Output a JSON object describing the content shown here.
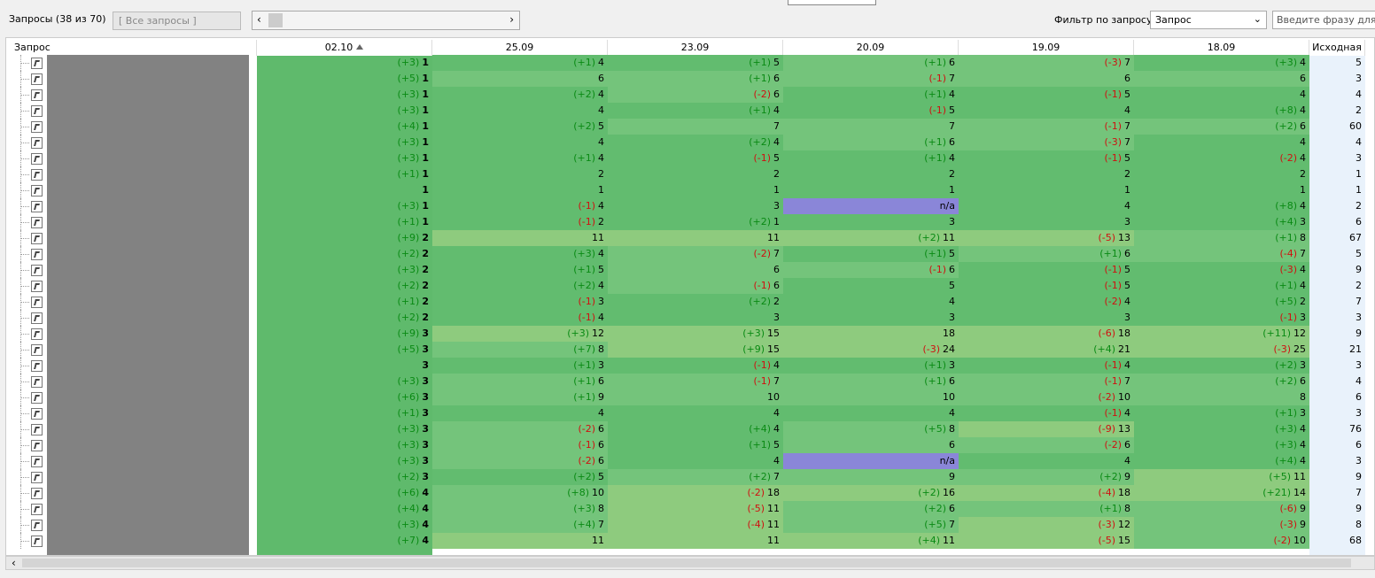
{
  "toolbar": {
    "title": "Запросы (38 из 70)",
    "query_set": "[ Все запросы ]",
    "filter_label": "Фильтр по запросу:",
    "filter_field": "Запрос",
    "search_placeholder": "Введите фразу для по"
  },
  "table": {
    "query_header": "Запрос",
    "columns": [
      "02.10",
      "25.09",
      "23.09",
      "20.09",
      "19.09",
      "18.09"
    ],
    "source_header": "Исходная",
    "rows": [
      {
        "cells": [
          [
            "(+3)",
            1
          ],
          [
            "(+1)",
            4
          ],
          [
            "(+1)",
            5
          ],
          [
            "(+1)",
            6
          ],
          [
            "(-3)",
            7
          ],
          [
            "(+3)",
            4
          ]
        ],
        "source": 5
      },
      {
        "cells": [
          [
            "(+5)",
            1
          ],
          [
            6
          ],
          [
            "(+1)",
            6
          ],
          [
            "(-1)",
            7
          ],
          [
            6
          ],
          [
            6
          ]
        ],
        "source": 3
      },
      {
        "cells": [
          [
            "(+3)",
            1
          ],
          [
            "(+2)",
            4
          ],
          [
            "(-2)",
            6
          ],
          [
            "(+1)",
            4
          ],
          [
            "(-1)",
            5
          ],
          [
            4
          ]
        ],
        "source": 4
      },
      {
        "cells": [
          [
            "(+3)",
            1
          ],
          [
            4
          ],
          [
            "(+1)",
            4
          ],
          [
            "(-1)",
            5
          ],
          [
            4
          ],
          [
            "(+8)",
            4
          ]
        ],
        "source": 2
      },
      {
        "cells": [
          [
            "(+4)",
            1
          ],
          [
            "(+2)",
            5
          ],
          [
            7
          ],
          [
            7
          ],
          [
            "(-1)",
            7
          ],
          [
            "(+2)",
            6
          ]
        ],
        "source": 60
      },
      {
        "cells": [
          [
            "(+3)",
            1
          ],
          [
            4
          ],
          [
            "(+2)",
            4
          ],
          [
            "(+1)",
            6
          ],
          [
            "(-3)",
            7
          ],
          [
            4
          ]
        ],
        "source": 4
      },
      {
        "cells": [
          [
            "(+3)",
            1
          ],
          [
            "(+1)",
            4
          ],
          [
            "(-1)",
            5
          ],
          [
            "(+1)",
            4
          ],
          [
            "(-1)",
            5
          ],
          [
            "(-2)",
            4
          ]
        ],
        "source": 3
      },
      {
        "cells": [
          [
            "(+1)",
            1
          ],
          [
            2
          ],
          [
            2
          ],
          [
            2
          ],
          [
            2
          ],
          [
            2
          ]
        ],
        "source": 1
      },
      {
        "cells": [
          [
            1
          ],
          [
            1
          ],
          [
            1
          ],
          [
            1
          ],
          [
            1
          ],
          [
            1
          ]
        ],
        "source": 1
      },
      {
        "cells": [
          [
            "(+3)",
            1
          ],
          [
            "(-1)",
            4
          ],
          [
            3
          ],
          [
            "n/a"
          ],
          [
            4
          ],
          [
            "(+8)",
            4
          ]
        ],
        "source": 2
      },
      {
        "cells": [
          [
            "(+1)",
            1
          ],
          [
            "(-1)",
            2
          ],
          [
            "(+2)",
            1
          ],
          [
            3
          ],
          [
            3
          ],
          [
            "(+4)",
            3
          ]
        ],
        "source": 6
      },
      {
        "cells": [
          [
            "(+9)",
            2
          ],
          [
            11
          ],
          [
            11
          ],
          [
            "(+2)",
            11
          ],
          [
            "(-5)",
            13
          ],
          [
            "(+1)",
            8
          ]
        ],
        "source": 67
      },
      {
        "cells": [
          [
            "(+2)",
            2
          ],
          [
            "(+3)",
            4
          ],
          [
            "(-2)",
            7
          ],
          [
            "(+1)",
            5
          ],
          [
            "(+1)",
            6
          ],
          [
            "(-4)",
            7
          ]
        ],
        "source": 5
      },
      {
        "cells": [
          [
            "(+3)",
            2
          ],
          [
            "(+1)",
            5
          ],
          [
            6
          ],
          [
            "(-1)",
            6
          ],
          [
            "(-1)",
            5
          ],
          [
            "(-3)",
            4
          ]
        ],
        "source": 9
      },
      {
        "cells": [
          [
            "(+2)",
            2
          ],
          [
            "(+2)",
            4
          ],
          [
            "(-1)",
            6
          ],
          [
            5
          ],
          [
            "(-1)",
            5
          ],
          [
            "(+1)",
            4
          ]
        ],
        "source": 2
      },
      {
        "cells": [
          [
            "(+1)",
            2
          ],
          [
            "(-1)",
            3
          ],
          [
            "(+2)",
            2
          ],
          [
            4
          ],
          [
            "(-2)",
            4
          ],
          [
            "(+5)",
            2
          ]
        ],
        "source": 7
      },
      {
        "cells": [
          [
            "(+2)",
            2
          ],
          [
            "(-1)",
            4
          ],
          [
            3
          ],
          [
            3
          ],
          [
            3
          ],
          [
            "(-1)",
            3
          ]
        ],
        "source": 3
      },
      {
        "cells": [
          [
            "(+9)",
            3
          ],
          [
            "(+3)",
            12
          ],
          [
            "(+3)",
            15
          ],
          [
            18
          ],
          [
            "(-6)",
            18
          ],
          [
            "(+11)",
            12
          ]
        ],
        "source": 9
      },
      {
        "cells": [
          [
            "(+5)",
            3
          ],
          [
            "(+7)",
            8
          ],
          [
            "(+9)",
            15
          ],
          [
            "(-3)",
            24
          ],
          [
            "(+4)",
            21
          ],
          [
            "(-3)",
            25
          ]
        ],
        "source": 21
      },
      {
        "cells": [
          [
            3
          ],
          [
            "(+1)",
            3
          ],
          [
            "(-1)",
            4
          ],
          [
            "(+1)",
            3
          ],
          [
            "(-1)",
            4
          ],
          [
            "(+2)",
            3
          ]
        ],
        "source": 3
      },
      {
        "cells": [
          [
            "(+3)",
            3
          ],
          [
            "(+1)",
            6
          ],
          [
            "(-1)",
            7
          ],
          [
            "(+1)",
            6
          ],
          [
            "(-1)",
            7
          ],
          [
            "(+2)",
            6
          ]
        ],
        "source": 4
      },
      {
        "cells": [
          [
            "(+6)",
            3
          ],
          [
            "(+1)",
            9
          ],
          [
            10
          ],
          [
            10
          ],
          [
            "(-2)",
            10
          ],
          [
            8
          ]
        ],
        "source": 6
      },
      {
        "cells": [
          [
            "(+1)",
            3
          ],
          [
            4
          ],
          [
            4
          ],
          [
            4
          ],
          [
            "(-1)",
            4
          ],
          [
            "(+1)",
            3
          ]
        ],
        "source": 3
      },
      {
        "cells": [
          [
            "(+3)",
            3
          ],
          [
            "(-2)",
            6
          ],
          [
            "(+4)",
            4
          ],
          [
            "(+5)",
            8
          ],
          [
            "(-9)",
            13
          ],
          [
            "(+3)",
            4
          ]
        ],
        "source": 76
      },
      {
        "cells": [
          [
            "(+3)",
            3
          ],
          [
            "(-1)",
            6
          ],
          [
            "(+1)",
            5
          ],
          [
            6
          ],
          [
            "(-2)",
            6
          ],
          [
            "(+3)",
            4
          ]
        ],
        "source": 6
      },
      {
        "cells": [
          [
            "(+3)",
            3
          ],
          [
            "(-2)",
            6
          ],
          [
            4
          ],
          [
            "n/a"
          ],
          [
            4
          ],
          [
            "(+4)",
            4
          ]
        ],
        "source": 3
      },
      {
        "cells": [
          [
            "(+2)",
            3
          ],
          [
            "(+2)",
            5
          ],
          [
            "(+2)",
            7
          ],
          [
            9
          ],
          [
            "(+2)",
            9
          ],
          [
            "(+5)",
            11
          ]
        ],
        "source": 9
      },
      {
        "cells": [
          [
            "(+6)",
            4
          ],
          [
            "(+8)",
            10
          ],
          [
            "(-2)",
            18
          ],
          [
            "(+2)",
            16
          ],
          [
            "(-4)",
            18
          ],
          [
            "(+21)",
            14
          ]
        ],
        "source": 7
      },
      {
        "cells": [
          [
            "(+4)",
            4
          ],
          [
            "(+3)",
            8
          ],
          [
            "(-5)",
            11
          ],
          [
            "(+2)",
            6
          ],
          [
            "(+1)",
            8
          ],
          [
            "(-6)",
            9
          ]
        ],
        "source": 9
      },
      {
        "cells": [
          [
            "(+3)",
            4
          ],
          [
            "(+4)",
            7
          ],
          [
            "(-4)",
            11
          ],
          [
            "(+5)",
            7
          ],
          [
            "(-3)",
            12
          ],
          [
            "(-3)",
            9
          ]
        ],
        "source": 8
      },
      {
        "cells": [
          [
            "(+7)",
            4
          ],
          [
            11
          ],
          [
            11
          ],
          [
            "(+4)",
            11
          ],
          [
            "(-5)",
            15
          ],
          [
            "(-2)",
            10
          ]
        ],
        "source": 68
      }
    ]
  }
}
